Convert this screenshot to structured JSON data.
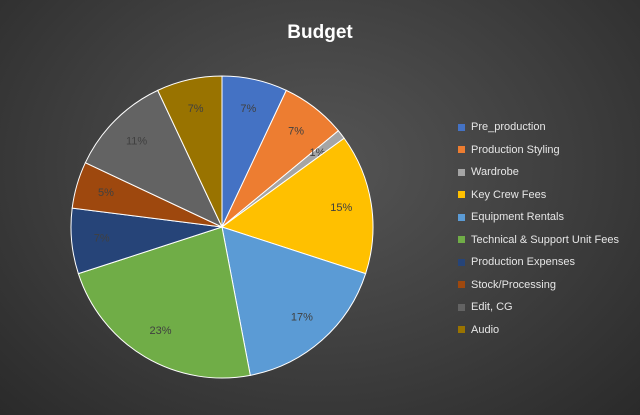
{
  "chart_data": {
    "type": "pie",
    "title": "Budget",
    "legend_position": "right",
    "slices": [
      {
        "label": "Pre_production",
        "value": 7,
        "value_label": "7%",
        "color": "#4472c4"
      },
      {
        "label": "Production Styling",
        "value": 7,
        "value_label": "7%",
        "color": "#ed7d31"
      },
      {
        "label": "Wardrobe",
        "value": 1,
        "value_label": "1%",
        "color": "#a5a5a5"
      },
      {
        "label": "Key Crew Fees",
        "value": 15,
        "value_label": "15%",
        "color": "#ffc000"
      },
      {
        "label": "Equipment Rentals",
        "value": 17,
        "value_label": "17%",
        "color": "#5b9bd5"
      },
      {
        "label": "Technical & Support Unit Fees",
        "value": 23,
        "value_label": "23%",
        "color": "#70ad47"
      },
      {
        "label": "Production Expenses",
        "value": 7,
        "value_label": "7%",
        "color": "#264478"
      },
      {
        "label": "Stock/Processing",
        "value": 5,
        "value_label": "5%",
        "color": "#9e480e"
      },
      {
        "label": "Edit, CG",
        "value": 11,
        "value_label": "11%",
        "color": "#636363"
      },
      {
        "label": "Audio",
        "value": 7,
        "value_label": "7%",
        "color": "#997300"
      }
    ]
  }
}
